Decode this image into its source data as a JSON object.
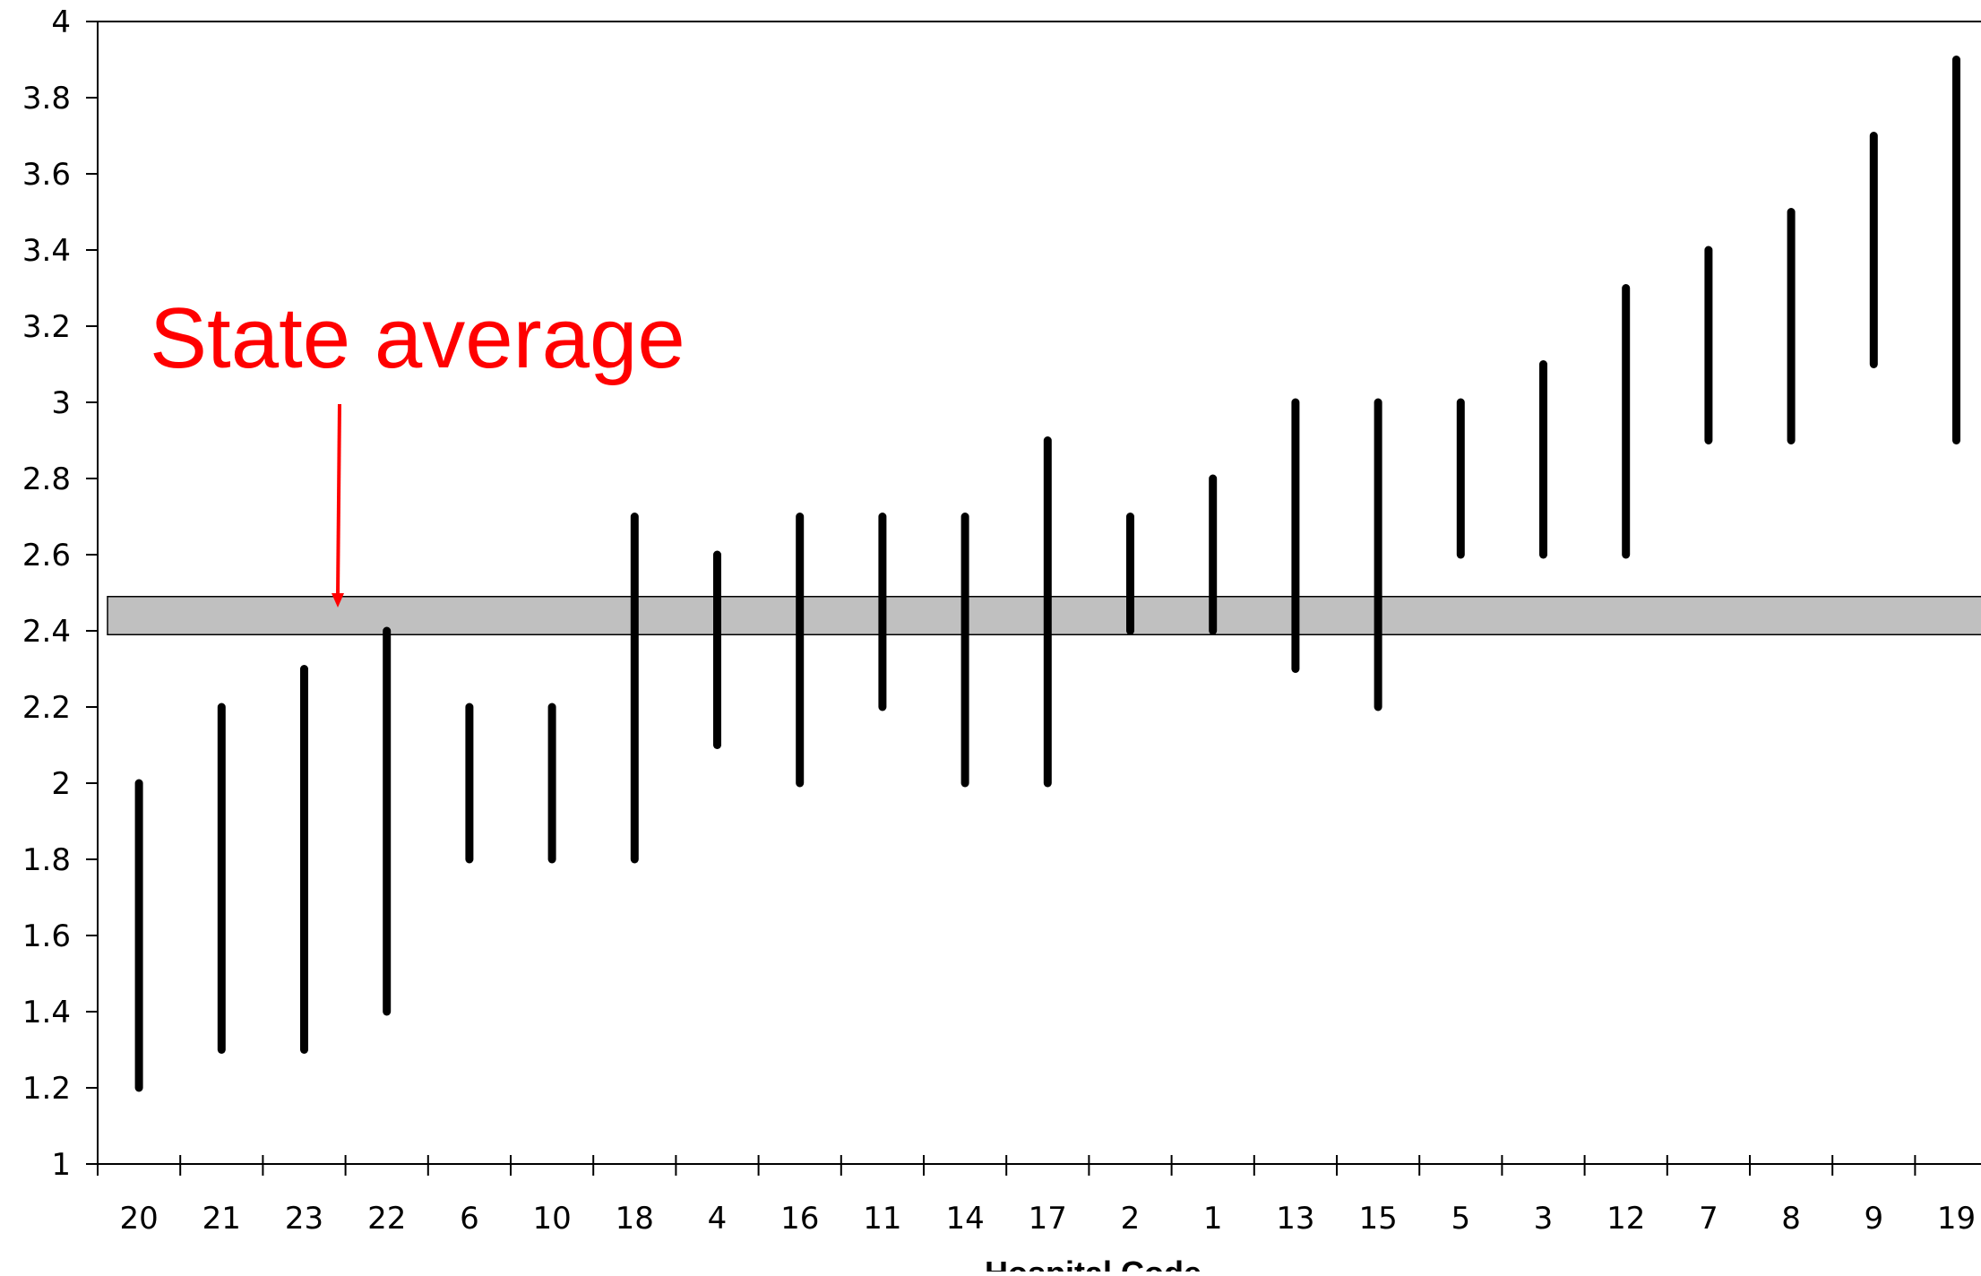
{
  "chart_data": {
    "type": "range-bar",
    "title": "",
    "xlabel": "Hospital Code",
    "ylabel": "",
    "ylim": [
      1,
      4
    ],
    "yticks": [
      1,
      1.2,
      1.4,
      1.6,
      1.8,
      2,
      2.2,
      2.4,
      2.6,
      2.8,
      3,
      3.2,
      3.4,
      3.6,
      3.8,
      4
    ],
    "ytick_labels": [
      "1",
      "1.2",
      "1.4",
      "1.6",
      "1.8",
      "2",
      "2.2",
      "2.4",
      "2.6",
      "2.8",
      "3",
      "3.2",
      "3.4",
      "3.6",
      "3.8",
      "4"
    ],
    "grid": false,
    "categories": [
      "20",
      "21",
      "23",
      "22",
      "6",
      "10",
      "18",
      "4",
      "16",
      "11",
      "14",
      "17",
      "2",
      "1",
      "13",
      "15",
      "5",
      "3",
      "12",
      "7",
      "8",
      "9",
      "19"
    ],
    "ranges": [
      [
        1.2,
        2.0
      ],
      [
        1.3,
        2.2
      ],
      [
        1.3,
        2.3
      ],
      [
        1.4,
        2.4
      ],
      [
        1.8,
        2.2
      ],
      [
        1.8,
        2.2
      ],
      [
        1.8,
        2.7
      ],
      [
        2.1,
        2.6
      ],
      [
        2.0,
        2.7
      ],
      [
        2.2,
        2.7
      ],
      [
        2.0,
        2.7
      ],
      [
        2.0,
        2.9
      ],
      [
        2.4,
        2.7
      ],
      [
        2.4,
        2.8
      ],
      [
        2.3,
        3.0
      ],
      [
        2.2,
        3.0
      ],
      [
        2.6,
        3.0
      ],
      [
        2.6,
        3.1
      ],
      [
        2.6,
        3.3
      ],
      [
        2.9,
        3.4
      ],
      [
        2.9,
        3.5
      ],
      [
        3.1,
        3.7
      ],
      [
        2.9,
        3.9
      ]
    ],
    "reference_band": {
      "low": 2.39,
      "high": 2.49,
      "color": "#c0c0c0"
    },
    "annotation": {
      "text": "State average",
      "color": "#ff0000"
    },
    "bar_color": "#000000",
    "axis_color": "#000000"
  }
}
